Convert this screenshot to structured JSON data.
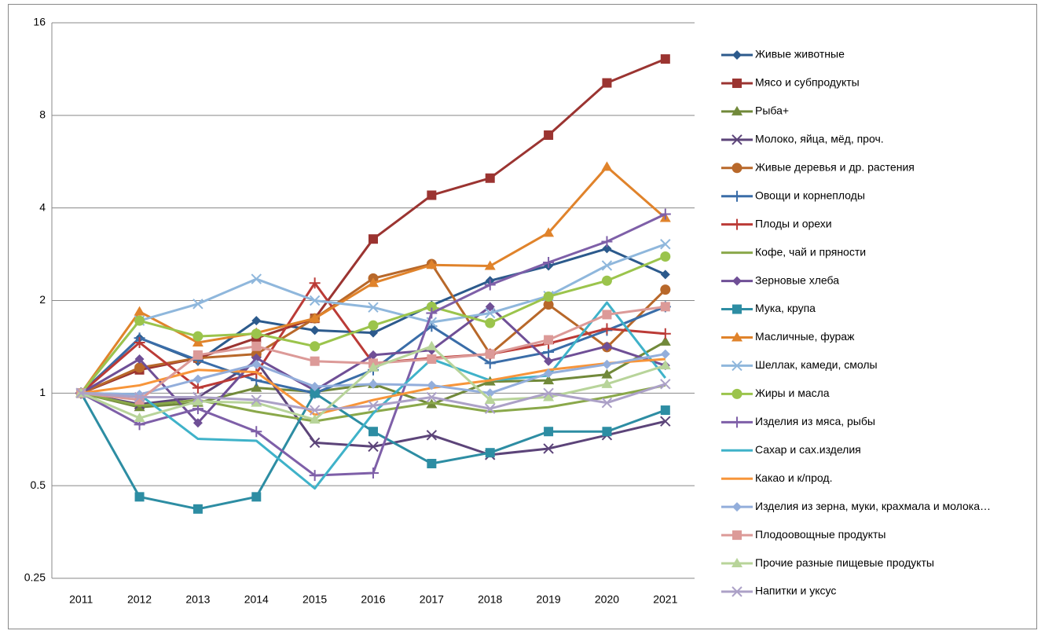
{
  "chart_data": {
    "type": "line",
    "log_scale": true,
    "grid": true,
    "legend": "right",
    "categories": [
      "2011",
      "2012",
      "2013",
      "2014",
      "2015",
      "2016",
      "2017",
      "2018",
      "2019",
      "2020",
      "2021"
    ],
    "ylim": [
      0.25,
      16
    ],
    "yticks": [
      0.25,
      0.5,
      1,
      2,
      4,
      8,
      16
    ],
    "series": [
      {
        "name": "Живые животные",
        "color": "#2c5a8c",
        "marker": "diamond",
        "values": [
          1,
          1.51,
          1.27,
          1.72,
          1.6,
          1.57,
          1.93,
          2.32,
          2.59,
          2.95,
          2.43
        ]
      },
      {
        "name": "Мясо и субпродукты",
        "color": "#9b3431",
        "marker": "square",
        "values": [
          1,
          1.19,
          1.3,
          1.51,
          1.75,
          3.17,
          4.4,
          5.0,
          6.9,
          10.2,
          12.2
        ]
      },
      {
        "name": "Рыба+",
        "color": "#71893a",
        "marker": "triangle",
        "values": [
          1,
          0.9,
          0.93,
          1.04,
          1.01,
          1.07,
          0.92,
          1.09,
          1.1,
          1.15,
          1.47
        ]
      },
      {
        "name": "Молоко, яйца, мёд, проч.",
        "color": "#5c4479",
        "marker": "x",
        "values": [
          1,
          0.92,
          0.97,
          1.27,
          0.69,
          0.67,
          0.73,
          0.63,
          0.66,
          0.73,
          0.81
        ]
      },
      {
        "name": "Живые деревья и др. растения",
        "color": "#b8682a",
        "marker": "circle",
        "values": [
          1,
          1.21,
          1.3,
          1.34,
          1.75,
          2.36,
          2.63,
          1.34,
          1.94,
          1.41,
          2.17
        ]
      },
      {
        "name": "Овощи и корнеплоды",
        "color": "#3a6da8",
        "marker": "plus",
        "values": [
          1,
          1.51,
          1.28,
          1.1,
          1.0,
          1.19,
          1.65,
          1.25,
          1.36,
          1.6,
          1.91
        ]
      },
      {
        "name": "Плоды и орехи",
        "color": "#bb3b37",
        "marker": "plus",
        "values": [
          1,
          1.46,
          1.04,
          1.16,
          2.28,
          1.25,
          1.3,
          1.34,
          1.45,
          1.62,
          1.56
        ]
      },
      {
        "name": "Кофе, чай и пряности",
        "color": "#8aa84a",
        "marker": "none",
        "values": [
          1,
          0.91,
          0.95,
          0.87,
          0.81,
          0.87,
          0.93,
          0.87,
          0.9,
          0.97,
          1.06
        ]
      },
      {
        "name": "Зерновые хлеба",
        "color": "#6f4f96",
        "marker": "diamond",
        "values": [
          1,
          1.29,
          0.8,
          1.3,
          1.02,
          1.33,
          1.38,
          1.91,
          1.27,
          1.42,
          1.23
        ]
      },
      {
        "name": "Мука, крупа",
        "color": "#2d8da3",
        "marker": "square",
        "values": [
          1,
          0.46,
          0.42,
          0.46,
          1.0,
          0.75,
          0.59,
          0.64,
          0.75,
          0.75,
          0.88
        ]
      },
      {
        "name": "Масличные, фураж",
        "color": "#e0832b",
        "marker": "triangle",
        "values": [
          1,
          1.84,
          1.46,
          1.57,
          1.75,
          2.28,
          2.61,
          2.59,
          3.32,
          5.44,
          3.71
        ]
      },
      {
        "name": "Шеллак, камеди, смолы",
        "color": "#8fb7dc",
        "marker": "x",
        "values": [
          1,
          1.72,
          1.95,
          2.35,
          2.0,
          1.9,
          1.7,
          1.82,
          2.07,
          2.6,
          3.05
        ]
      },
      {
        "name": "Жиры и масла",
        "color": "#9bc44c",
        "marker": "circle",
        "values": [
          1,
          1.72,
          1.53,
          1.56,
          1.42,
          1.66,
          1.91,
          1.69,
          2.06,
          2.32,
          2.78
        ]
      },
      {
        "name": "Изделия из мяса, рыбы",
        "color": "#7e5fa8",
        "marker": "plus",
        "values": [
          1,
          0.79,
          0.89,
          0.75,
          0.54,
          0.55,
          1.82,
          2.25,
          2.66,
          3.11,
          3.82
        ]
      },
      {
        "name": "Сахар и сах.изделия",
        "color": "#3fb2c9",
        "marker": "none",
        "values": [
          1,
          0.99,
          0.71,
          0.7,
          0.49,
          0.86,
          1.29,
          1.1,
          1.14,
          1.97,
          1.12
        ]
      },
      {
        "name": "Какао и к/прод.",
        "color": "#f7953a",
        "marker": "none",
        "values": [
          1,
          1.06,
          1.19,
          1.17,
          0.85,
          0.95,
          1.04,
          1.1,
          1.19,
          1.25,
          1.29
        ]
      },
      {
        "name": "Изделия из зерна, муки, крахмала и молока…",
        "color": "#93aedb",
        "marker": "diamond",
        "values": [
          1,
          0.99,
          1.11,
          1.24,
          1.05,
          1.07,
          1.06,
          1.0,
          1.16,
          1.24,
          1.34
        ]
      },
      {
        "name": "Плодоовощные продукты",
        "color": "#dc9a98",
        "marker": "square",
        "values": [
          1,
          0.95,
          1.33,
          1.42,
          1.27,
          1.25,
          1.29,
          1.34,
          1.49,
          1.8,
          1.91
        ]
      },
      {
        "name": "Прочие разные пищевые продукты",
        "color": "#b8d49a",
        "marker": "triangle",
        "values": [
          1,
          0.83,
          0.94,
          0.93,
          0.82,
          1.21,
          1.42,
          0.95,
          0.97,
          1.07,
          1.23
        ]
      },
      {
        "name": "Напитки и уксус",
        "color": "#aca1c7",
        "marker": "x",
        "values": [
          1,
          0.97,
          0.97,
          0.95,
          0.88,
          0.91,
          0.97,
          0.89,
          1.0,
          0.93,
          1.07
        ]
      }
    ]
  }
}
